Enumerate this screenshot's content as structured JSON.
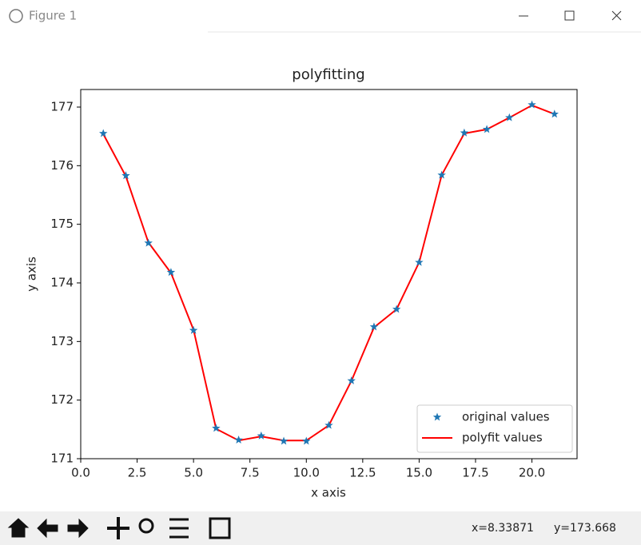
{
  "window": {
    "title": "Figure 1"
  },
  "chart_data": {
    "type": "line",
    "title": "polyfitting",
    "x_label": "x axis",
    "y_label": "y axis",
    "x": [
      1,
      2,
      3,
      4,
      5,
      6,
      7,
      8,
      9,
      10,
      11,
      12,
      13,
      14,
      15,
      16,
      17,
      18,
      19,
      20,
      21
    ],
    "series": [
      {
        "name": "original values",
        "color": "#1f77b4",
        "style": "marker",
        "values": [
          176.55,
          175.83,
          174.68,
          174.18,
          173.19,
          171.52,
          171.32,
          171.39,
          171.3,
          171.3,
          171.57,
          172.33,
          173.25,
          173.55,
          174.35,
          175.84,
          176.56,
          176.62,
          176.82,
          177.04,
          176.88
        ]
      },
      {
        "name": "polyfit values",
        "color": "#ff0000",
        "style": "line",
        "values": [
          176.54,
          175.82,
          174.69,
          174.17,
          173.2,
          171.51,
          171.31,
          171.38,
          171.31,
          171.31,
          171.57,
          172.33,
          173.24,
          173.55,
          174.35,
          175.84,
          176.55,
          176.62,
          176.82,
          177.03,
          176.88
        ]
      }
    ],
    "xlim": [
      0,
      22
    ],
    "ylim": [
      171,
      177.3
    ],
    "xticks": [
      {
        "value": 0,
        "label": "0.0"
      },
      {
        "value": 2.5,
        "label": "2.5"
      },
      {
        "value": 5,
        "label": "5.0"
      },
      {
        "value": 7.5,
        "label": "7.5"
      },
      {
        "value": 10,
        "label": "10.0"
      },
      {
        "value": 12.5,
        "label": "12.5"
      },
      {
        "value": 15,
        "label": "15.0"
      },
      {
        "value": 17.5,
        "label": "17.5"
      },
      {
        "value": 20,
        "label": "20.0"
      }
    ],
    "yticks": [
      171,
      172,
      173,
      174,
      175,
      176,
      177
    ],
    "legend": "lower right"
  },
  "status": {
    "x": "x=8.33871",
    "y": "y=173.668"
  }
}
